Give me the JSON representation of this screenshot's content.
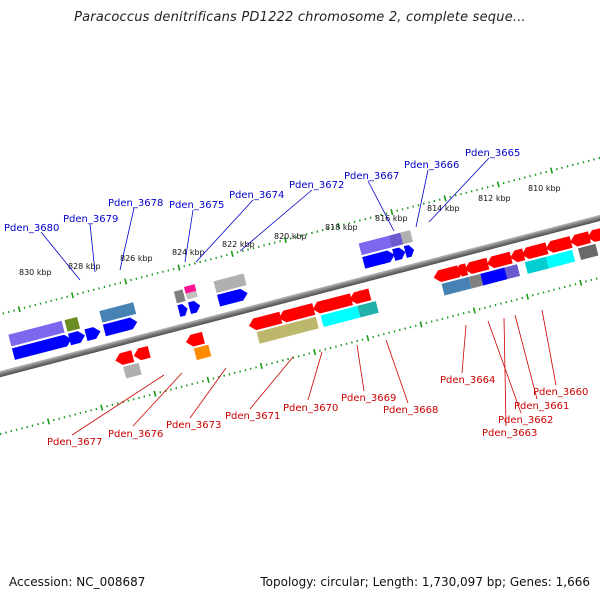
{
  "title": "Paracoccus denitrificans PD1222 chromosome 2, complete seque...",
  "footer": {
    "accession": "Accession: NC_008687",
    "topology": "Topology: circular; Length: 1,730,097 bp; Genes: 1,666"
  },
  "colors": {
    "upper_label": "#0000cc",
    "lower_label": "#cc0000",
    "backbone": "#808080",
    "tick": "#1a9a1a"
  },
  "kbp_labels": [
    "830 kbp",
    "828 kbp",
    "826 kbp",
    "824 kbp",
    "822 kbp",
    "820 kbp",
    "818 kbp",
    "816 kbp",
    "814 kbp",
    "812 kbp",
    "810 kbp"
  ],
  "upper_gene_labels": [
    "Pden_3680",
    "Pden_3679",
    "Pden_3678",
    "Pden_3675",
    "Pden_3674",
    "Pden_3672",
    "Pden_3667",
    "Pden_3666",
    "Pden_3665"
  ],
  "lower_gene_labels": [
    "Pden_3677",
    "Pden_3676",
    "Pden_3673",
    "Pden_3671",
    "Pden_3670",
    "Pden_3669",
    "Pden_3668",
    "Pden_3664",
    "Pden_3663",
    "Pden_3662",
    "Pden_3661",
    "Pden_3660"
  ]
}
